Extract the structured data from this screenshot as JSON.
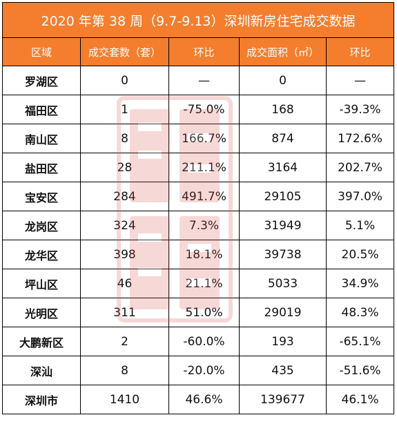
{
  "title": "2020 年第 38 周（9.7-9.13）深圳新房住宅成交数据",
  "headers": [
    "区域",
    "成交套数（套）",
    "环比",
    "成交面积（㎡）",
    "环比"
  ],
  "rows": [
    [
      "罗湖区",
      "0",
      "—",
      "0",
      "—"
    ],
    [
      "福田区",
      "1",
      "-75.0%",
      "168",
      "-39.3%"
    ],
    [
      "南山区",
      "8",
      "166.7%",
      "874",
      "172.6%"
    ],
    [
      "盐田区",
      "28",
      "211.1%",
      "3164",
      "202.7%"
    ],
    [
      "宝安区",
      "284",
      "491.7%",
      "29105",
      "397.0%"
    ],
    [
      "龙岗区",
      "324",
      "7.3%",
      "31949",
      "5.1%"
    ],
    [
      "龙华区",
      "398",
      "18.1%",
      "39738",
      "20.5%"
    ],
    [
      "坪山区",
      "46",
      "21.1%",
      "5033",
      "34.9%"
    ],
    [
      "光明区",
      "311",
      "51.0%",
      "29019",
      "48.3%"
    ],
    [
      "大鹏新区",
      "2",
      "-60.0%",
      "193",
      "-65.1%"
    ],
    [
      "深汕",
      "8",
      "-20.0%",
      "435",
      "-51.6%"
    ],
    [
      "深圳市",
      "1410",
      "46.6%",
      "139677",
      "46.1%"
    ]
  ],
  "colors": {
    "header_bg": "#f47e2e",
    "header_text": "#ffffff",
    "watermark": "#d9534f"
  },
  "watermark": {
    "icon": "stamp-seal-icon"
  }
}
